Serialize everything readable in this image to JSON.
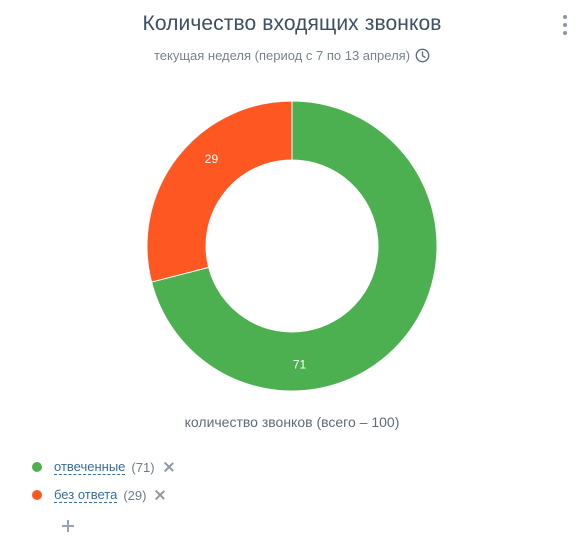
{
  "widget": {
    "title": "Количество входящих звонков",
    "subtitle": "текущая неделя (период с 7 по 13 апреля)",
    "total_label": "количество звонков  (всего – 100)"
  },
  "icons": {
    "menu": "more-vertical-icon",
    "period": "clock-icon",
    "remove": "close-icon",
    "add": "plus-icon"
  },
  "chart_data": {
    "type": "pie",
    "variant": "donut",
    "categories": [
      "отвеченные",
      "без ответа"
    ],
    "values": [
      71,
      29
    ],
    "data_labels": [
      "71",
      "29"
    ],
    "colors": [
      "#4caf50",
      "#ff5722"
    ],
    "total": 100,
    "legend_position": "bottom-left"
  },
  "legend": [
    {
      "label": "отвеченные",
      "count": "(71)",
      "color": "#4caf50"
    },
    {
      "label": "без ответа",
      "count": "(29)",
      "color": "#ff5722"
    }
  ]
}
